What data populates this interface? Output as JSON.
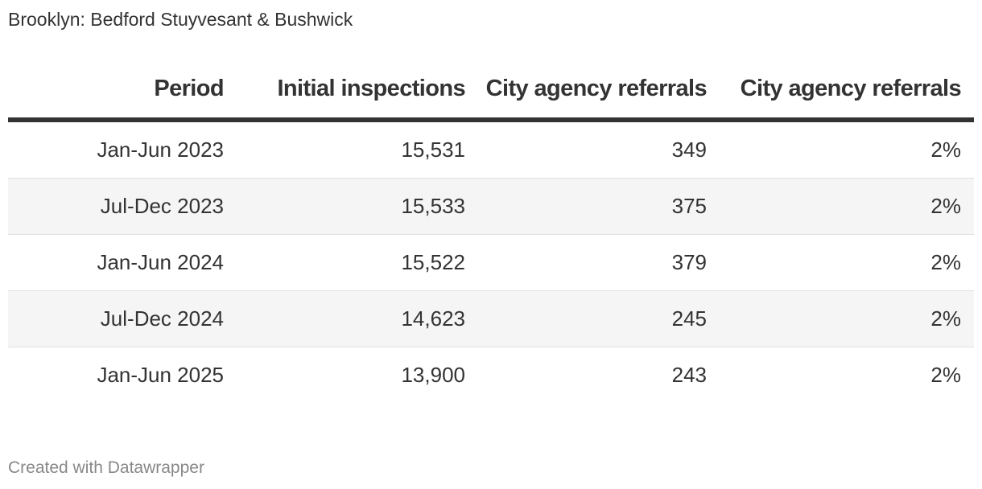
{
  "title": "Brooklyn: Bedford Stuyvesant & Bushwick",
  "footer": "Created with Datawrapper",
  "chart_data": {
    "type": "table",
    "title": "Brooklyn: Bedford Stuyvesant & Bushwick",
    "columns": [
      "Period",
      "Initial inspections",
      "City agency referrals",
      "City agency referrals"
    ],
    "rows": [
      [
        "Jan-Jun 2023",
        "15,531",
        "349",
        "2%"
      ],
      [
        "Jul-Dec 2023",
        "15,533",
        "375",
        "2%"
      ],
      [
        "Jan-Jun 2024",
        "15,522",
        "379",
        "2%"
      ],
      [
        "Jul-Dec 2024",
        "14,623",
        "245",
        "2%"
      ],
      [
        "Jan-Jun 2025",
        "13,900",
        "243",
        "2%"
      ]
    ]
  }
}
